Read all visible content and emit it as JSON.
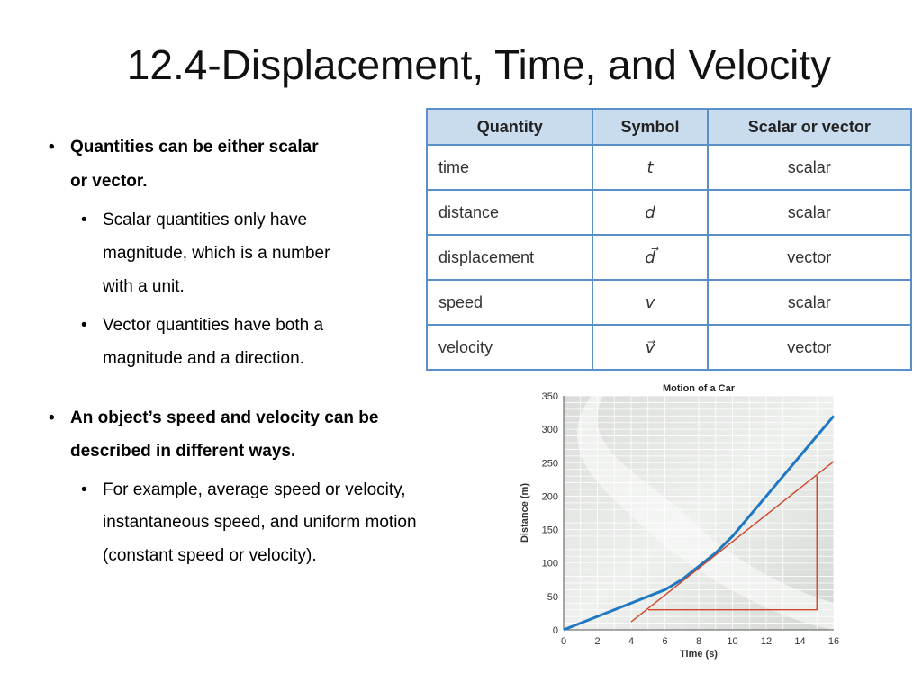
{
  "slide": {
    "title": "12.4-Displacement, Time, and Velocity"
  },
  "bullets": {
    "b1": "Quantities can be either scalar",
    "b1b": "or vector.",
    "b1_sub1_l1": "Scalar quantities only have",
    "b1_sub1_l2": "magnitude, which is a number",
    "b1_sub1_l3": "with a unit.",
    "b1_sub2_l1": "Vector quantities have both a",
    "b1_sub2_l2": "magnitude and a direction.",
    "b2_l1": "An object’s speed and velocity can be",
    "b2_l2": "described in different ways.",
    "b2_sub1_l1": "For example, average speed or velocity,",
    "b2_sub1_l2": "instantaneous speed, and uniform motion",
    "b2_sub1_l3": "(constant speed or velocity).",
    "glyph": "•"
  },
  "table": {
    "headers": [
      "Quantity",
      "Symbol",
      "Scalar or vector"
    ],
    "rows": [
      [
        "time",
        "t",
        "scalar"
      ],
      [
        "distance",
        "d",
        "scalar"
      ],
      [
        "displacement",
        "d⃗",
        "vector"
      ],
      [
        "speed",
        "v",
        "scalar"
      ],
      [
        "velocity",
        "v⃗",
        "vector"
      ]
    ],
    "header_bg": "#c9dcee",
    "border_color": "#5b8fc7"
  },
  "chart_data": {
    "type": "line",
    "title": "Motion of a Car",
    "xlabel": "Time (s)",
    "ylabel": "Distance (m)",
    "xlim": [
      0,
      16
    ],
    "ylim": [
      0,
      350
    ],
    "x_ticks": [
      0,
      2,
      4,
      6,
      8,
      10,
      12,
      14,
      16
    ],
    "y_ticks": [
      0,
      50,
      100,
      150,
      200,
      250,
      300,
      350
    ],
    "grid": true,
    "series": [
      {
        "name": "",
        "color": "#1f78c1",
        "points": [
          [
            0,
            0
          ],
          [
            6,
            60
          ],
          [
            7,
            75
          ],
          [
            8,
            95
          ],
          [
            9,
            115
          ],
          [
            10,
            140
          ],
          [
            12,
            200
          ],
          [
            14,
            260
          ],
          [
            16,
            320
          ]
        ]
      },
      {
        "name": "",
        "color": "#d0452a",
        "points": [
          [
            4,
            12
          ],
          [
            16,
            252
          ]
        ]
      }
    ],
    "annotations": [
      {
        "type": "triangle",
        "color": "#d0452a",
        "points": [
          [
            5,
            30
          ],
          [
            15,
            30
          ],
          [
            15,
            230
          ]
        ]
      }
    ]
  }
}
